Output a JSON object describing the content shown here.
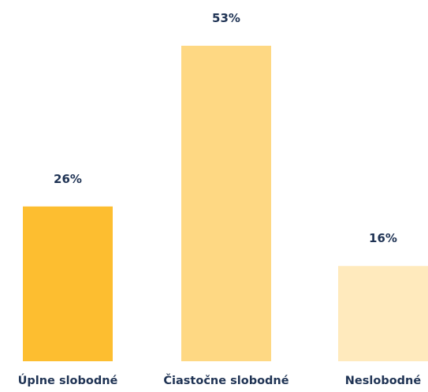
{
  "chart_data": {
    "type": "bar",
    "categories": [
      "Úplne slobodné",
      "Čiastočne slobodné",
      "Neslobodné"
    ],
    "values": [
      26,
      53,
      16
    ],
    "value_labels": [
      "26%",
      "53%",
      "16%"
    ],
    "unit": "%",
    "ylim": [
      0,
      53
    ],
    "grid": false,
    "legend": "none",
    "colors": [
      "#FDBE30",
      "#FED883",
      "#FFEABD"
    ],
    "text_color": "#1F3354"
  }
}
